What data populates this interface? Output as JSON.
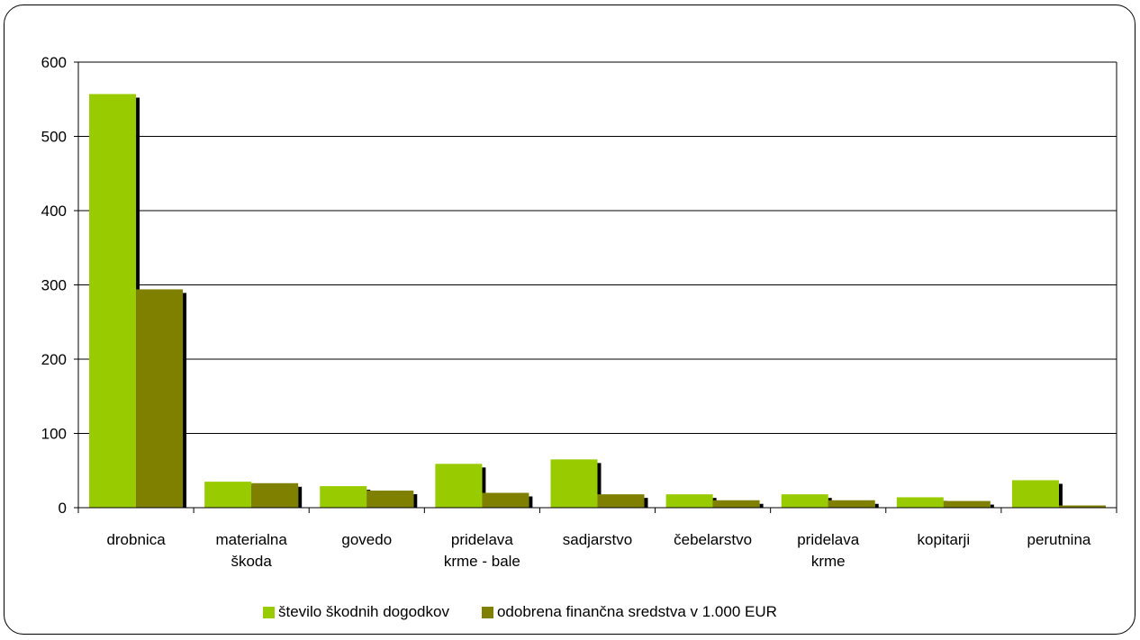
{
  "chart_data": {
    "type": "bar",
    "categories": [
      [
        "drobnica"
      ],
      [
        "materialna",
        "škoda"
      ],
      [
        "govedo"
      ],
      [
        "pridelava",
        "krme - bale"
      ],
      [
        "sadjarstvo"
      ],
      [
        "čebelarstvo"
      ],
      [
        "pridelava",
        "krme"
      ],
      [
        "kopitarji"
      ],
      [
        "perutnina"
      ]
    ],
    "series": [
      {
        "name": "število škodnih dogodkov",
        "color": "#99cc00",
        "values": [
          557,
          35,
          29,
          59,
          65,
          18,
          18,
          14,
          37
        ]
      },
      {
        "name": "odobrena finančna sredstva v 1.000 EUR",
        "color": "#808000",
        "values": [
          294,
          33,
          23,
          20,
          18,
          10,
          10,
          9,
          3
        ]
      }
    ],
    "ylim": [
      0,
      600
    ],
    "yticks": [
      "0",
      "100",
      "200",
      "300",
      "400",
      "500",
      "600"
    ],
    "grid": true,
    "legend_position": "bottom"
  }
}
